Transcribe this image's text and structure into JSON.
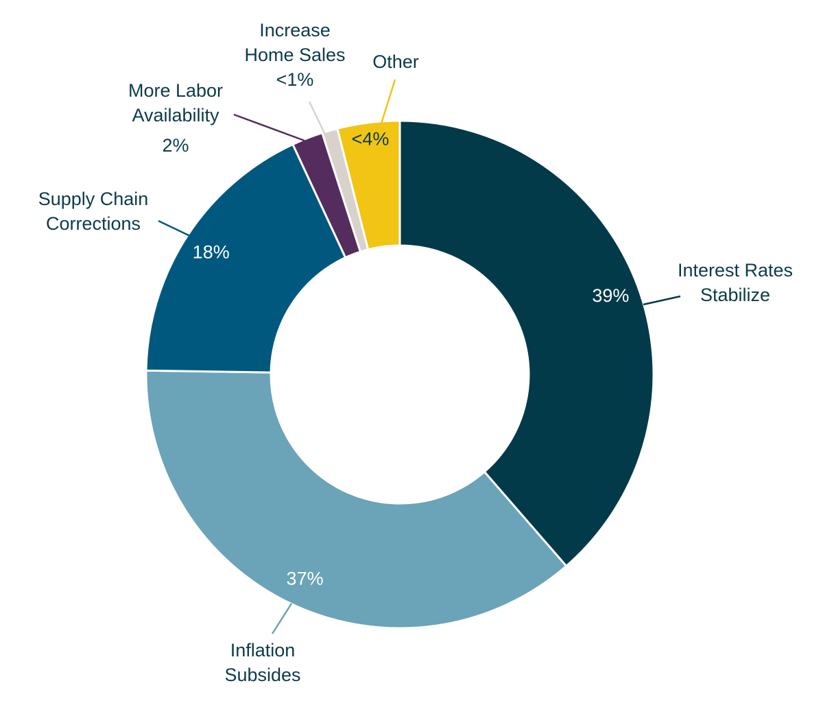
{
  "chart_data": {
    "type": "pie",
    "donut": true,
    "title": "",
    "legend": "none",
    "slices": [
      {
        "key": "interest",
        "label_lines": [
          "Interest Rates",
          "Stabilize"
        ],
        "value": 39,
        "display": "39%",
        "color": "#023a4a",
        "text_color": "#ffffff",
        "leader_color": "#023a4a"
      },
      {
        "key": "inflation",
        "label_lines": [
          "Inflation",
          "Subsides"
        ],
        "value": 37,
        "display": "37%",
        "color": "#6ba3b9",
        "text_color": "#ffffff",
        "leader_color": "#6ba3b9"
      },
      {
        "key": "supply",
        "label_lines": [
          "Supply Chain",
          "Corrections"
        ],
        "value": 18,
        "display": "18%",
        "color": "#00587e",
        "text_color": "#ffffff",
        "leader_color": "#00587e"
      },
      {
        "key": "labor",
        "label_lines": [
          "More Labor",
          "Availability",
          "2%"
        ],
        "value": 2,
        "display": "",
        "color": "#542d5e",
        "text_color": "#0d3b4a",
        "leader_color": "#542d5e"
      },
      {
        "key": "homesales",
        "label_lines": [
          "Increase",
          "Home Sales",
          "<1%"
        ],
        "value": 1,
        "display": "",
        "color": "#d9d2cc",
        "text_color": "#0d3b4a",
        "leader_color": "#d9d2cc"
      },
      {
        "key": "other",
        "label_lines": [
          "Other"
        ],
        "value": 4,
        "display": "<4%",
        "color": "#f2c413",
        "text_color": "#0d3b4a",
        "leader_color": "#f2c413"
      }
    ]
  }
}
